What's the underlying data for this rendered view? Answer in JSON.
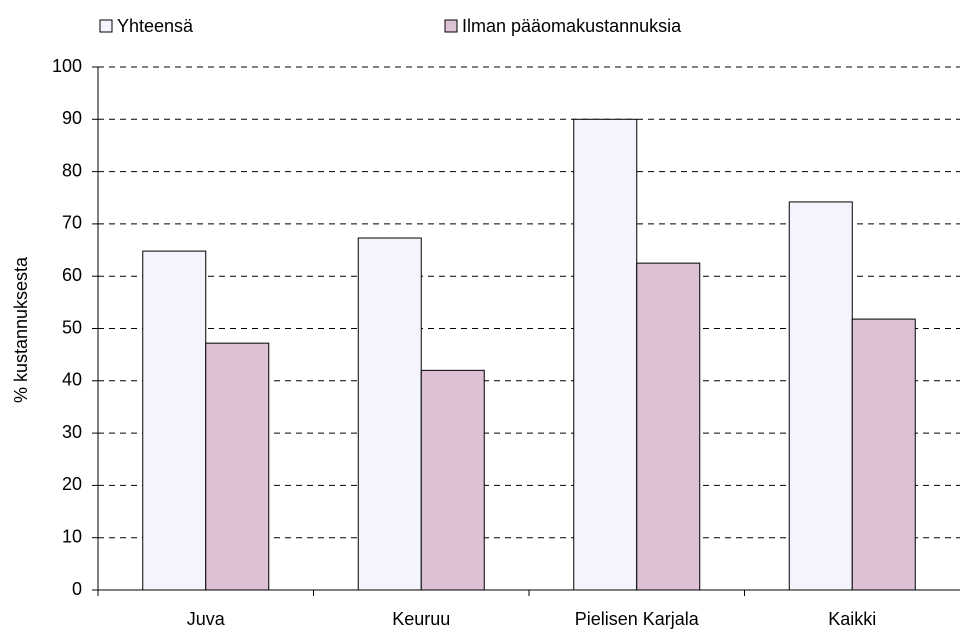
{
  "chart_data": {
    "type": "bar",
    "ylabel": "% kustannuksesta",
    "categories": [
      "Juva",
      "Keuruu",
      "Pielisen Karjala",
      "Kaikki"
    ],
    "series": [
      {
        "name": "Yhteensä",
        "color": "#f4f4fc",
        "values": [
          64.8,
          67.3,
          90,
          74.2
        ]
      },
      {
        "name": "Ilman pääomakustannuksia",
        "color": "#dcc2d4",
        "values": [
          47.2,
          42,
          62.5,
          51.8
        ]
      }
    ],
    "ylim": [
      0,
      100
    ],
    "yticks": [
      0,
      10,
      20,
      30,
      40,
      50,
      60,
      70,
      80,
      90,
      100
    ],
    "grid": true,
    "legend": "top"
  }
}
